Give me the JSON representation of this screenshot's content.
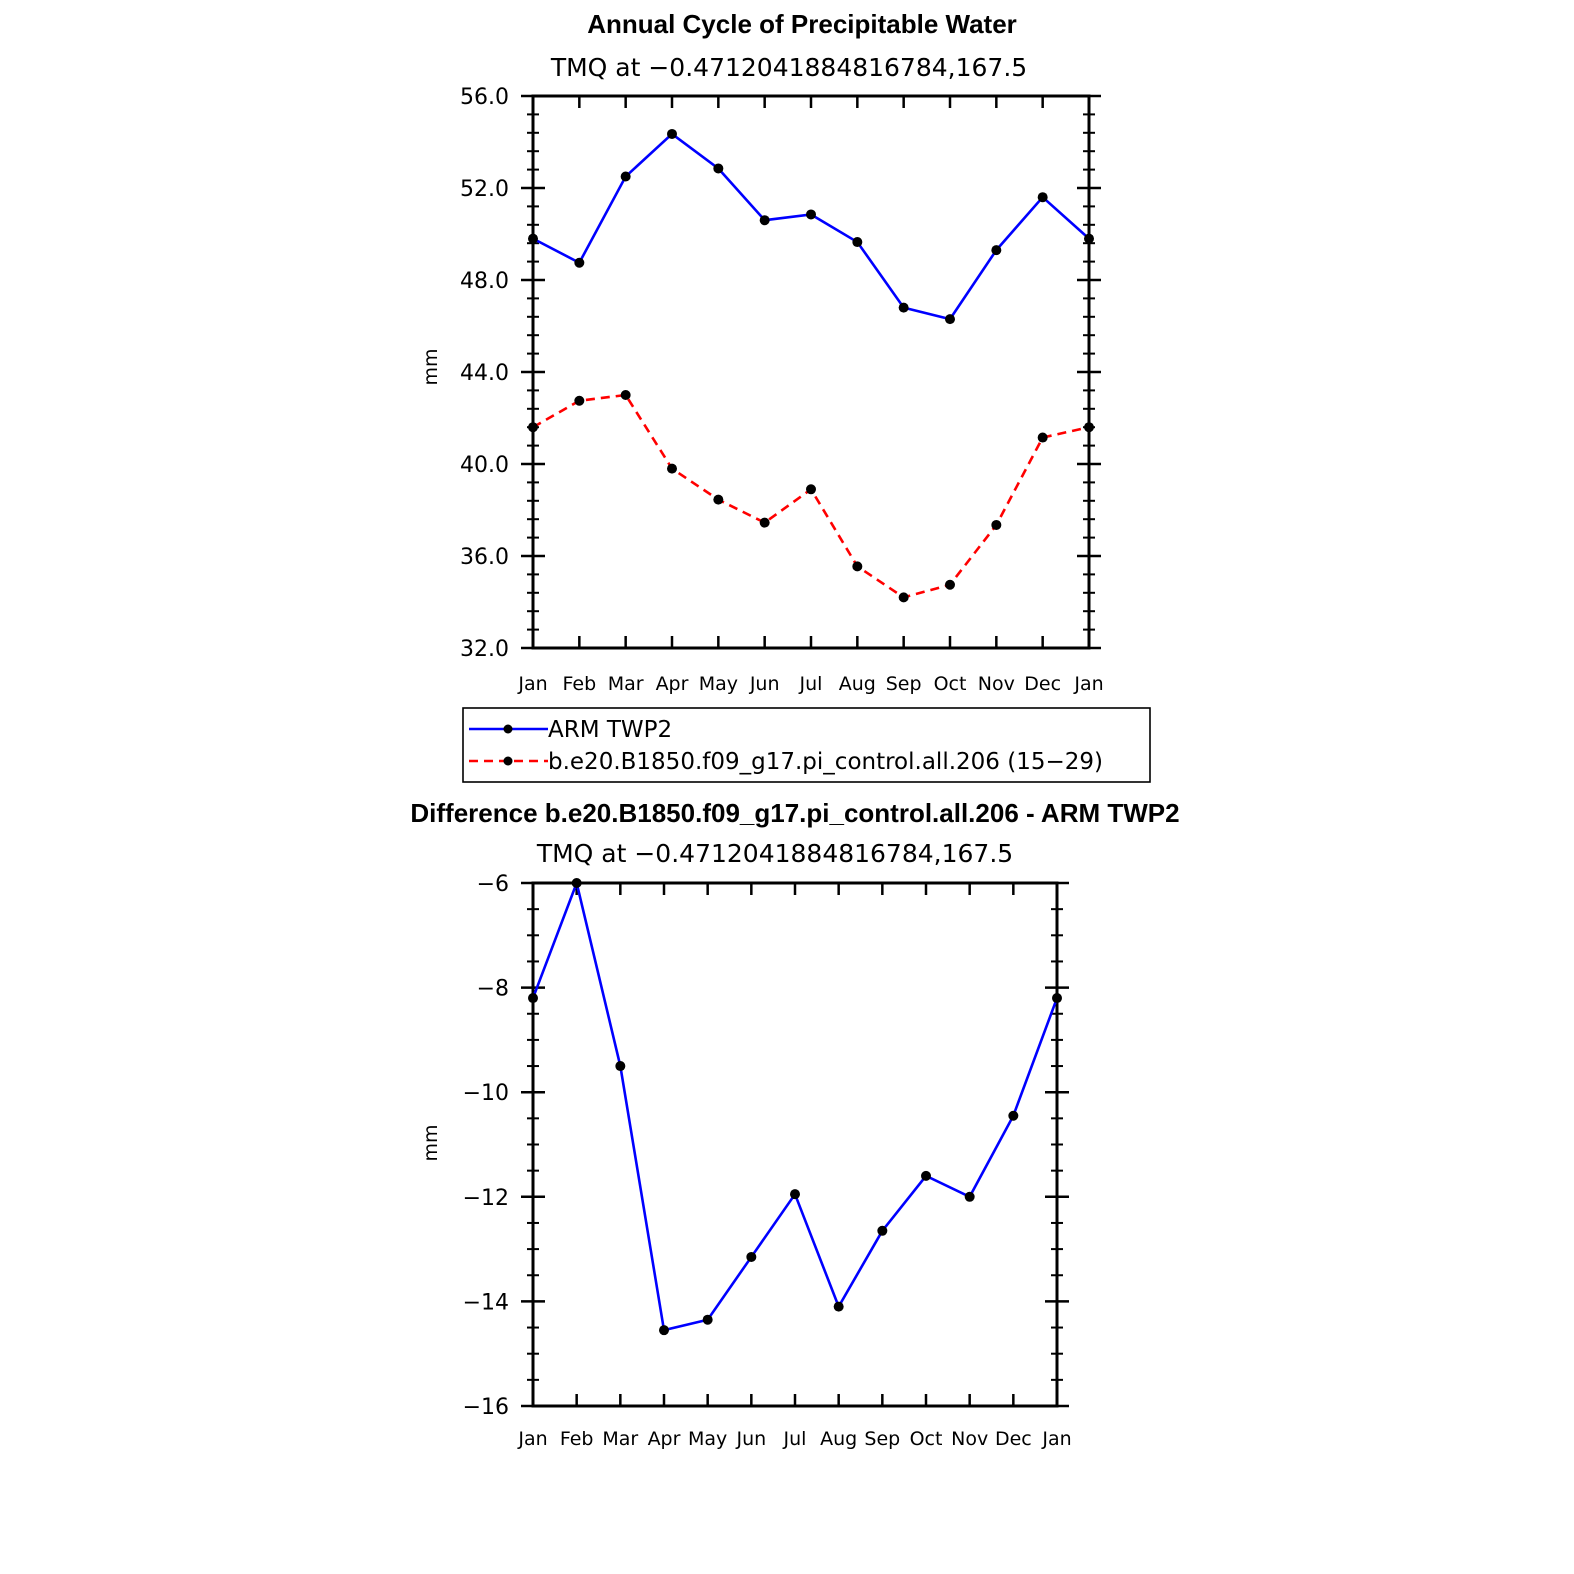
{
  "chart_data": [
    {
      "type": "line",
      "title": "Annual Cycle of Precipitable Water",
      "subtitle": "TMQ at −0.4712041884816784,167.5",
      "xlabel": "",
      "ylabel": "mm",
      "categories": [
        "Jan",
        "Feb",
        "Mar",
        "Apr",
        "May",
        "Jun",
        "Jul",
        "Aug",
        "Sep",
        "Oct",
        "Nov",
        "Dec",
        "Jan"
      ],
      "ylim": [
        32.0,
        56.0
      ],
      "yticks": [
        32.0,
        36.0,
        40.0,
        44.0,
        48.0,
        52.0,
        56.0
      ],
      "ytick_labels": [
        "32.0",
        "36.0",
        "40.0",
        "44.0",
        "48.0",
        "52.0",
        "56.0"
      ],
      "series": [
        {
          "name": "ARM TWP2",
          "color": "#0000ff",
          "dash": "solid",
          "values": [
            49.8,
            48.75,
            52.5,
            54.35,
            52.85,
            50.6,
            50.85,
            49.65,
            46.8,
            46.3,
            49.3,
            51.6,
            49.8
          ]
        },
        {
          "name": "b.e20.B1850.f09_g17.pi_control.all.206 (15−29)",
          "color": "#ff0000",
          "dash": "dashed",
          "values": [
            41.6,
            42.75,
            43.0,
            39.8,
            38.45,
            37.45,
            38.9,
            35.55,
            34.2,
            34.75,
            37.35,
            41.15,
            41.6
          ]
        }
      ],
      "legend": "below"
    },
    {
      "type": "line",
      "title": "Difference b.e20.B1850.f09_g17.pi_control.all.206 - ARM TWP2",
      "subtitle": "TMQ at −0.4712041884816784,167.5",
      "xlabel": "",
      "ylabel": "mm",
      "categories": [
        "Jan",
        "Feb",
        "Mar",
        "Apr",
        "May",
        "Jun",
        "Jul",
        "Aug",
        "Sep",
        "Oct",
        "Nov",
        "Dec",
        "Jan"
      ],
      "ylim": [
        -16,
        -6
      ],
      "yticks": [
        -16,
        -14,
        -12,
        -10,
        -8,
        -6
      ],
      "ytick_labels": [
        "−16",
        "−14",
        "−12",
        "−10",
        "−8",
        "−6"
      ],
      "series": [
        {
          "name": "Difference",
          "color": "#0000ff",
          "dash": "solid",
          "values": [
            -8.2,
            -6.0,
            -9.5,
            -14.55,
            -14.35,
            -13.15,
            -11.95,
            -14.1,
            -12.65,
            -11.6,
            -12.0,
            -10.45,
            -8.2
          ]
        }
      ]
    }
  ]
}
